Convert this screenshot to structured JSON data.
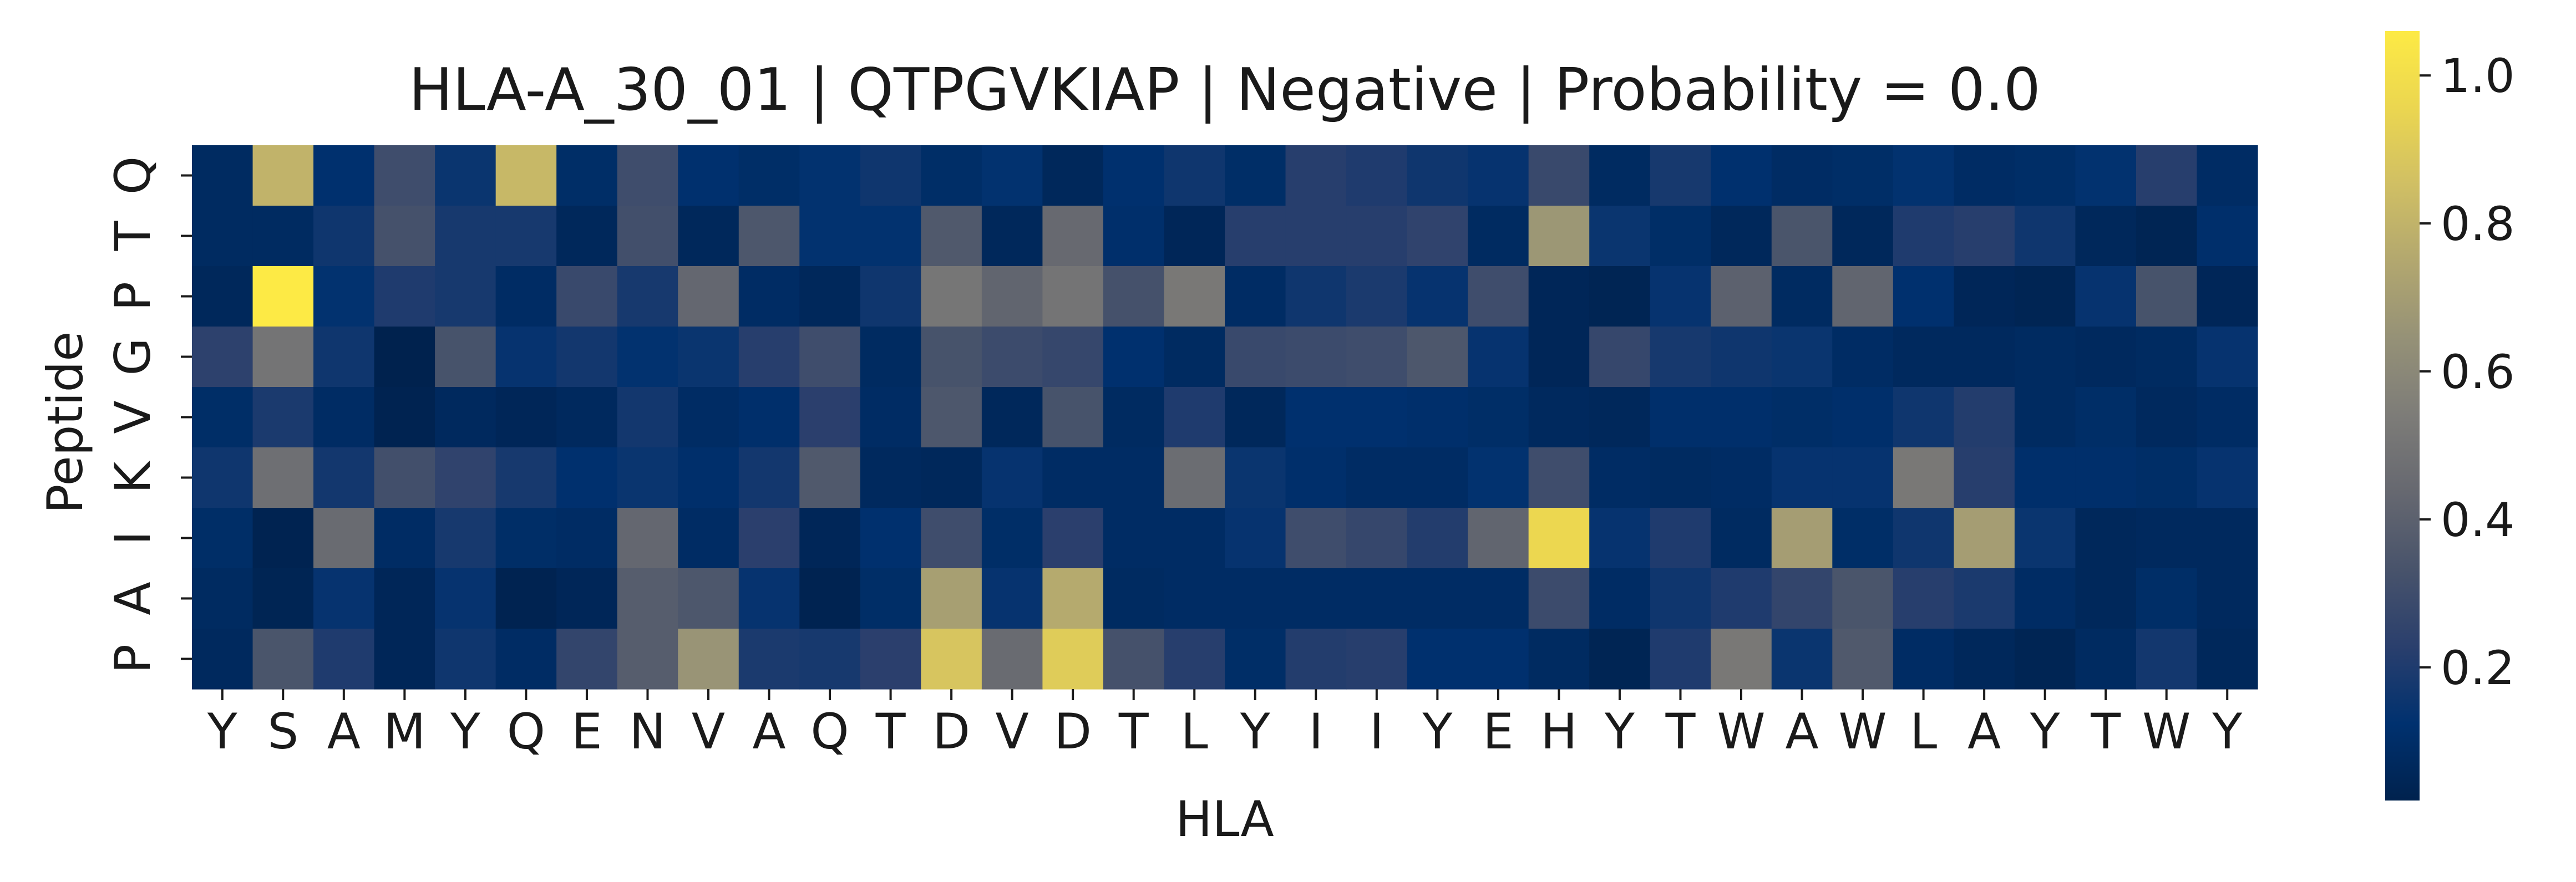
{
  "chart_data": {
    "type": "heatmap",
    "title": "HLA-A_30_01 | QTPGVKIAP | Negative | Probability = 0.0",
    "xlabel": "HLA",
    "ylabel": "Peptide",
    "x_categories": [
      "Y",
      "S",
      "A",
      "M",
      "Y",
      "Q",
      "E",
      "N",
      "V",
      "A",
      "Q",
      "T",
      "D",
      "V",
      "D",
      "T",
      "L",
      "Y",
      "I",
      "I",
      "Y",
      "E",
      "H",
      "Y",
      "T",
      "W",
      "A",
      "W",
      "L",
      "A",
      "Y",
      "T",
      "W",
      "Y"
    ],
    "y_categories": [
      "Q",
      "T",
      "P",
      "G",
      "V",
      "K",
      "I",
      "A",
      "P"
    ],
    "colormap": "cividis",
    "colorbar": {
      "range": [
        0.02,
        1.06
      ],
      "ticks": [
        0.2,
        0.4,
        0.6,
        0.8,
        1.0
      ],
      "tick_labels": [
        "0.2",
        "0.4",
        "0.6",
        "0.8",
        "1.0"
      ]
    },
    "values": [
      [
        0.08,
        0.8,
        0.12,
        0.3,
        0.15,
        0.82,
        0.1,
        0.3,
        0.12,
        0.1,
        0.13,
        0.16,
        0.1,
        0.13,
        0.06,
        0.12,
        0.16,
        0.1,
        0.22,
        0.2,
        0.16,
        0.14,
        0.28,
        0.08,
        0.18,
        0.12,
        0.09,
        0.1,
        0.13,
        0.09,
        0.1,
        0.13,
        0.22,
        0.09
      ],
      [
        0.08,
        0.08,
        0.16,
        0.32,
        0.18,
        0.18,
        0.06,
        0.31,
        0.06,
        0.35,
        0.13,
        0.13,
        0.36,
        0.06,
        0.44,
        0.11,
        0.05,
        0.22,
        0.22,
        0.22,
        0.25,
        0.08,
        0.67,
        0.15,
        0.1,
        0.06,
        0.34,
        0.06,
        0.2,
        0.22,
        0.16,
        0.06,
        0.04,
        0.11
      ],
      [
        0.06,
        1.06,
        0.13,
        0.2,
        0.18,
        0.09,
        0.28,
        0.18,
        0.43,
        0.09,
        0.06,
        0.16,
        0.51,
        0.42,
        0.5,
        0.32,
        0.52,
        0.09,
        0.16,
        0.19,
        0.14,
        0.3,
        0.05,
        0.04,
        0.14,
        0.4,
        0.08,
        0.42,
        0.12,
        0.05,
        0.04,
        0.14,
        0.33,
        0.05
      ],
      [
        0.24,
        0.5,
        0.16,
        0.02,
        0.33,
        0.14,
        0.17,
        0.13,
        0.15,
        0.22,
        0.3,
        0.08,
        0.33,
        0.29,
        0.27,
        0.12,
        0.08,
        0.28,
        0.29,
        0.3,
        0.35,
        0.14,
        0.05,
        0.27,
        0.18,
        0.16,
        0.15,
        0.09,
        0.07,
        0.07,
        0.08,
        0.07,
        0.08,
        0.14
      ],
      [
        0.1,
        0.19,
        0.09,
        0.03,
        0.07,
        0.05,
        0.07,
        0.17,
        0.09,
        0.11,
        0.23,
        0.09,
        0.35,
        0.06,
        0.33,
        0.08,
        0.2,
        0.06,
        0.12,
        0.12,
        0.11,
        0.1,
        0.07,
        0.06,
        0.11,
        0.11,
        0.1,
        0.11,
        0.16,
        0.21,
        0.08,
        0.1,
        0.07,
        0.09
      ],
      [
        0.16,
        0.47,
        0.17,
        0.31,
        0.25,
        0.18,
        0.12,
        0.15,
        0.11,
        0.17,
        0.36,
        0.07,
        0.06,
        0.14,
        0.09,
        0.09,
        0.46,
        0.15,
        0.11,
        0.09,
        0.09,
        0.13,
        0.3,
        0.09,
        0.08,
        0.09,
        0.14,
        0.14,
        0.52,
        0.22,
        0.11,
        0.11,
        0.1,
        0.14
      ],
      [
        0.1,
        0.03,
        0.45,
        0.09,
        0.18,
        0.1,
        0.09,
        0.43,
        0.09,
        0.23,
        0.05,
        0.12,
        0.3,
        0.1,
        0.23,
        0.09,
        0.09,
        0.14,
        0.3,
        0.27,
        0.21,
        0.42,
        0.96,
        0.14,
        0.2,
        0.08,
        0.7,
        0.1,
        0.16,
        0.7,
        0.15,
        0.06,
        0.07,
        0.07
      ],
      [
        0.08,
        0.04,
        0.14,
        0.05,
        0.14,
        0.03,
        0.05,
        0.38,
        0.35,
        0.14,
        0.03,
        0.1,
        0.71,
        0.14,
        0.76,
        0.08,
        0.09,
        0.09,
        0.09,
        0.09,
        0.09,
        0.09,
        0.29,
        0.09,
        0.16,
        0.2,
        0.26,
        0.34,
        0.22,
        0.19,
        0.09,
        0.06,
        0.1,
        0.07
      ],
      [
        0.07,
        0.34,
        0.2,
        0.05,
        0.16,
        0.09,
        0.26,
        0.38,
        0.66,
        0.19,
        0.18,
        0.23,
        0.88,
        0.45,
        0.91,
        0.32,
        0.22,
        0.1,
        0.21,
        0.22,
        0.12,
        0.12,
        0.08,
        0.04,
        0.2,
        0.52,
        0.15,
        0.36,
        0.09,
        0.06,
        0.04,
        0.08,
        0.17,
        0.06
      ]
    ]
  }
}
